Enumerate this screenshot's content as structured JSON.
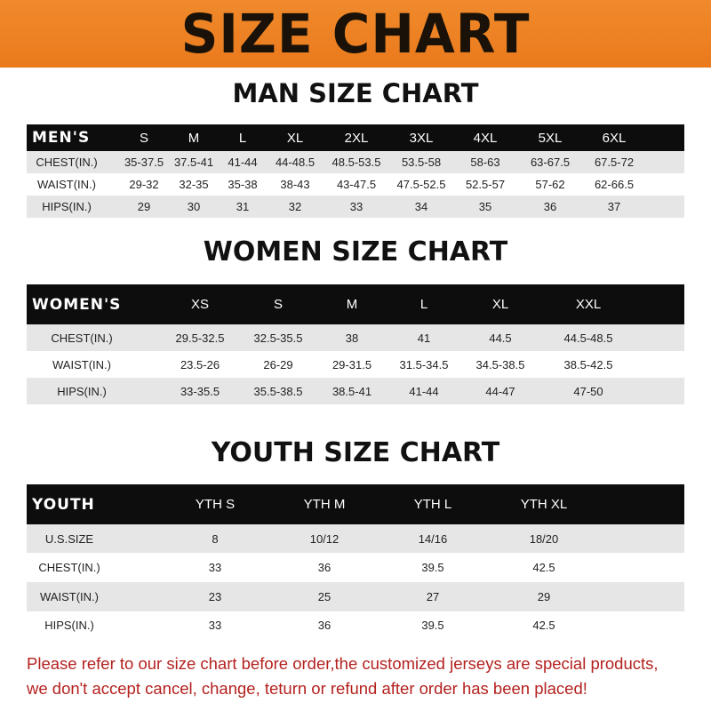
{
  "banner": {
    "title": "SIZE CHART"
  },
  "men": {
    "title": "MAN SIZE CHART",
    "header": [
      "MEN'S",
      "S",
      "M",
      "L",
      "XL",
      "2XL",
      "3XL",
      "4XL",
      "5XL",
      "6XL"
    ],
    "rows": [
      [
        "CHEST(IN.)",
        "35-37.5",
        "37.5-41",
        "41-44",
        "44-48.5",
        "48.5-53.5",
        "53.5-58",
        "58-63",
        "63-67.5",
        "67.5-72"
      ],
      [
        "WAIST(IN.)",
        "29-32",
        "32-35",
        "35-38",
        "38-43",
        "43-47.5",
        "47.5-52.5",
        "52.5-57",
        "57-62",
        "62-66.5"
      ],
      [
        "HIPS(IN.)",
        "29",
        "30",
        "31",
        "32",
        "33",
        "34",
        "35",
        "36",
        "37"
      ]
    ]
  },
  "women": {
    "title": "WOMEN SIZE CHART",
    "header": [
      "WOMEN'S",
      "XS",
      "S",
      "M",
      "L",
      "XL",
      "XXL"
    ],
    "rows": [
      [
        "CHEST(IN.)",
        "29.5-32.5",
        "32.5-35.5",
        "38",
        "41",
        "44.5",
        "44.5-48.5"
      ],
      [
        "WAIST(IN.)",
        "23.5-26",
        "26-29",
        "29-31.5",
        "31.5-34.5",
        "34.5-38.5",
        "38.5-42.5"
      ],
      [
        "HIPS(IN.)",
        "33-35.5",
        "35.5-38.5",
        "38.5-41",
        "41-44",
        "44-47",
        "47-50"
      ]
    ]
  },
  "youth": {
    "title": "YOUTH SIZE CHART",
    "header": [
      "YOUTH",
      "YTH S",
      "YTH M",
      "YTH L",
      "YTH XL"
    ],
    "rows": [
      [
        "U.S.SIZE",
        "8",
        "10/12",
        "14/16",
        "18/20"
      ],
      [
        "CHEST(IN.)",
        "33",
        "36",
        "39.5",
        "42.5"
      ],
      [
        "WAIST(IN.)",
        "23",
        "25",
        "27",
        "29"
      ],
      [
        "HIPS(IN.)",
        "33",
        "36",
        "39.5",
        "42.5"
      ]
    ]
  },
  "note": {
    "line1": "Please refer to our size chart before order,the customized jerseys are special products,",
    "line2": "we don't accept cancel, change, teturn or refund after order has been placed!"
  },
  "colors": {
    "banner": "#ee8326",
    "header": "#0d0d0d",
    "stripe": "#e6e6e6",
    "note": "#b3221f"
  }
}
